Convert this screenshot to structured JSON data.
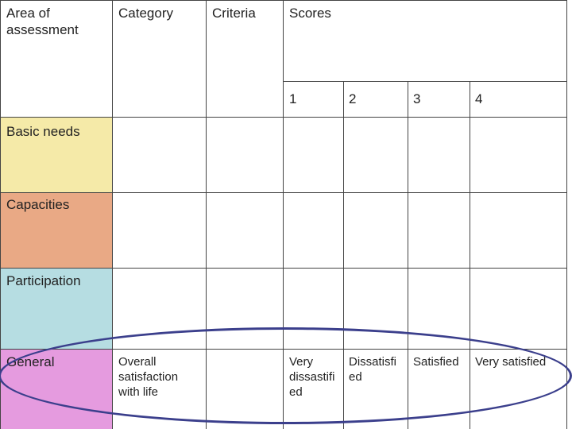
{
  "headers": {
    "area": "Area of assessment",
    "category": "Category",
    "criteria": "Criteria",
    "scores": "Scores",
    "score_1": "1",
    "score_2": "2",
    "score_3": "3",
    "score_4": "4"
  },
  "rows": [
    {
      "area": "Basic needs",
      "color": "#f5eaa8"
    },
    {
      "area": "Capacities",
      "color": "#e9a985"
    },
    {
      "area": "Participation",
      "color": "#b6dde2"
    },
    {
      "area": "General",
      "color": "#e59bdf"
    }
  ],
  "general_row": {
    "category": "Overall satisfaction with life",
    "score_1": "Very dissastifi ed",
    "score_2": "Dissatisfi ed",
    "score_3": "Satisfied",
    "score_4": "Very satisfied"
  },
  "colors": {
    "grid_line": "#444444",
    "ellipse": "#3b3f8c"
  }
}
